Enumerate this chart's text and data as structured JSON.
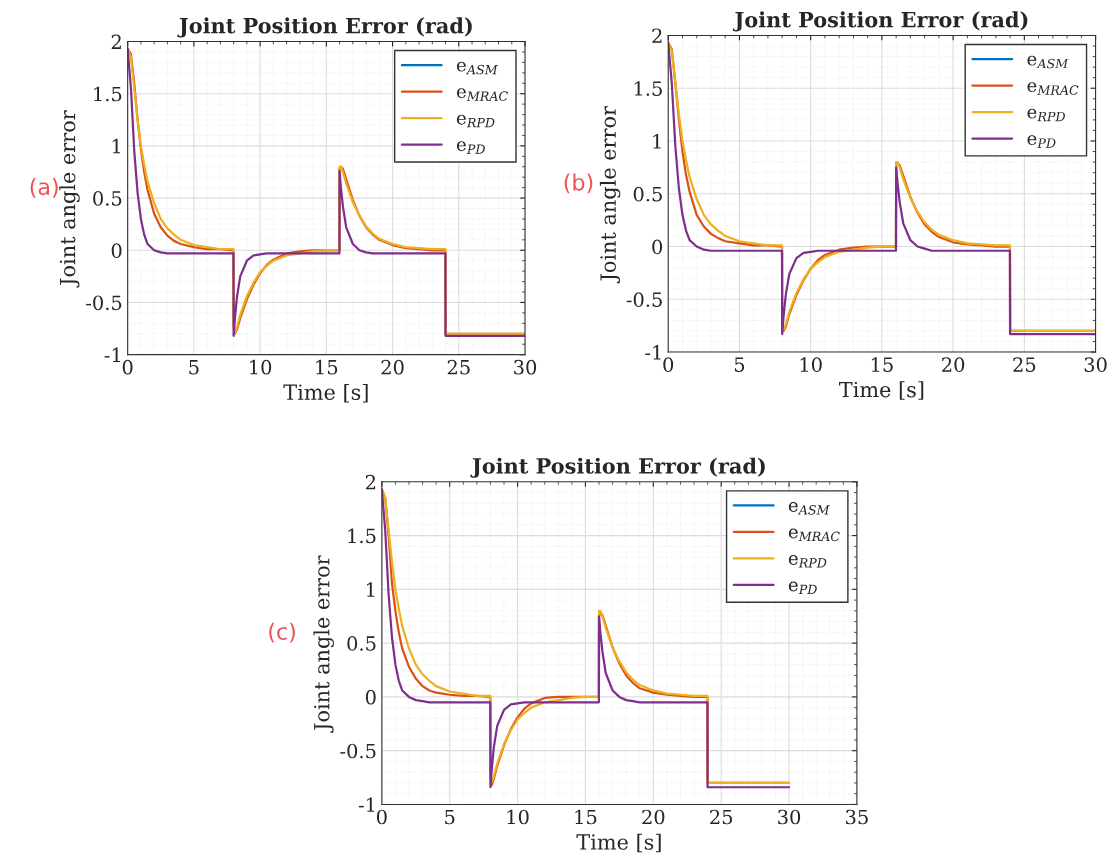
{
  "chart_data": [
    {
      "type": "line",
      "title": "Joint Position Error (rad)",
      "xlabel": "Time [s]",
      "ylabel": "Joint angle error",
      "annotations": [
        "(a)"
      ],
      "legend": "top right",
      "grid": true,
      "xlim": [
        0,
        30
      ],
      "xticks": [
        0,
        5,
        10,
        15,
        20,
        25,
        30
      ],
      "ylim": [
        -1,
        2
      ],
      "yticks": [
        -1,
        -0.5,
        0,
        0.5,
        1,
        1.5,
        2
      ],
      "x": [
        0,
        0.25,
        0.5,
        0.75,
        1,
        1.25,
        1.5,
        2,
        2.5,
        3,
        3.5,
        4,
        5,
        6,
        7,
        7.99,
        8,
        8.1,
        8.25,
        8.5,
        9,
        9.5,
        10,
        10.5,
        11,
        12,
        13,
        14,
        15,
        15.99,
        16,
        16.1,
        16.25,
        16.5,
        17,
        17.5,
        18,
        18.5,
        19,
        20,
        21,
        22,
        23,
        23.99,
        24,
        25,
        26,
        27,
        28,
        29,
        30
      ],
      "series": [
        {
          "name": "e$_{ASM}$",
          "color": "#0072bd",
          "values": [
            null,
            null,
            null,
            null,
            null,
            null,
            null,
            null,
            null,
            null,
            null,
            null,
            null,
            null,
            null,
            null,
            null,
            null,
            null,
            null,
            null,
            null,
            null,
            null,
            null,
            null,
            null,
            null,
            null,
            null,
            null,
            null,
            null,
            null,
            null,
            null,
            null,
            null,
            null,
            null,
            null,
            null,
            null,
            null,
            null,
            null,
            null,
            null,
            null,
            null,
            null
          ]
        },
        {
          "name": "e$_{MRAC}$",
          "color": "#d95319",
          "values": [
            1.93,
            1.88,
            1.6,
            1.25,
            0.97,
            0.75,
            0.58,
            0.35,
            0.22,
            0.14,
            0.09,
            0.06,
            0.03,
            0.01,
            0.01,
            0,
            -0.7,
            -0.8,
            -0.76,
            -0.65,
            -0.47,
            -0.33,
            -0.22,
            -0.14,
            -0.09,
            -0.03,
            -0.01,
            0,
            0,
            0,
            0.78,
            0.8,
            0.78,
            0.68,
            0.48,
            0.33,
            0.22,
            0.15,
            0.1,
            0.05,
            0.02,
            0.01,
            0,
            0,
            -0.8,
            -0.8,
            -0.8,
            -0.8,
            -0.8,
            -0.8,
            -0.8
          ]
        },
        {
          "name": "e$_{RPD}$",
          "color": "#edb120",
          "values": [
            1.93,
            1.85,
            1.55,
            1.25,
            1.0,
            0.82,
            0.66,
            0.45,
            0.3,
            0.21,
            0.15,
            0.1,
            0.05,
            0.03,
            0.01,
            0.01,
            -0.75,
            -0.79,
            -0.74,
            -0.62,
            -0.44,
            -0.31,
            -0.21,
            -0.15,
            -0.1,
            -0.05,
            -0.03,
            -0.01,
            0,
            0,
            0.8,
            0.8,
            0.75,
            0.64,
            0.46,
            0.33,
            0.23,
            0.16,
            0.11,
            0.06,
            0.03,
            0.02,
            0.01,
            0.01,
            -0.8,
            -0.8,
            -0.8,
            -0.8,
            -0.8,
            -0.8,
            -0.8
          ]
        },
        {
          "name": "e$_{PD}$",
          "color": "#7e2f8e",
          "values": [
            1.93,
            1.55,
            0.95,
            0.55,
            0.3,
            0.15,
            0.06,
            0,
            -0.02,
            -0.03,
            -0.03,
            -0.03,
            -0.03,
            -0.03,
            -0.03,
            -0.03,
            -0.82,
            -0.65,
            -0.45,
            -0.25,
            -0.1,
            -0.05,
            -0.04,
            -0.03,
            -0.03,
            -0.03,
            -0.03,
            -0.03,
            -0.03,
            -0.03,
            0.76,
            0.6,
            0.42,
            0.22,
            0.06,
            0,
            -0.02,
            -0.03,
            -0.03,
            -0.03,
            -0.03,
            -0.03,
            -0.03,
            -0.03,
            -0.82,
            -0.82,
            -0.82,
            -0.82,
            -0.82,
            -0.82,
            -0.82
          ]
        }
      ]
    },
    {
      "type": "line",
      "title": "Joint Position Error (rad)",
      "xlabel": "Time [s]",
      "ylabel": "Joint angle error",
      "annotations": [
        "(b)"
      ],
      "legend": "top right",
      "grid": true,
      "xlim": [
        0,
        30
      ],
      "xticks": [
        0,
        5,
        10,
        15,
        20,
        25,
        30
      ],
      "ylim": [
        -1,
        2
      ],
      "yticks": [
        -1,
        -0.5,
        0,
        0.5,
        1,
        1.5,
        2
      ],
      "x": [
        0,
        0.25,
        0.5,
        0.75,
        1,
        1.25,
        1.5,
        2,
        2.5,
        3,
        3.5,
        4,
        5,
        6,
        7,
        7.99,
        8,
        8.1,
        8.25,
        8.5,
        9,
        9.5,
        10,
        10.5,
        11,
        12,
        13,
        14,
        15,
        15.99,
        16,
        16.1,
        16.25,
        16.5,
        17,
        17.5,
        18,
        18.5,
        19,
        20,
        21,
        22,
        23,
        23.99,
        24,
        25,
        26,
        27,
        28,
        29,
        30
      ],
      "series": [
        {
          "name": "e$_{ASM}$",
          "color": "#0072bd",
          "values": [
            null,
            null,
            null,
            null,
            null,
            null,
            null,
            null,
            null,
            null,
            null,
            null,
            null,
            null,
            null,
            null,
            null,
            null,
            null,
            null,
            null,
            null,
            null,
            null,
            null,
            null,
            null,
            null,
            null,
            null,
            null,
            null,
            null,
            null,
            null,
            null,
            null,
            null,
            null,
            null,
            null,
            null,
            null,
            null,
            null,
            null,
            null,
            null,
            null,
            null,
            null
          ]
        },
        {
          "name": "e$_{MRAC}$",
          "color": "#d95319",
          "values": [
            1.93,
            1.87,
            1.55,
            1.2,
            0.9,
            0.68,
            0.52,
            0.3,
            0.19,
            0.12,
            0.08,
            0.05,
            0.03,
            0.01,
            0.01,
            0,
            -0.72,
            -0.8,
            -0.76,
            -0.64,
            -0.46,
            -0.32,
            -0.21,
            -0.13,
            -0.08,
            -0.03,
            -0.01,
            0,
            0,
            0,
            0.77,
            0.79,
            0.77,
            0.67,
            0.47,
            0.32,
            0.21,
            0.14,
            0.09,
            0.04,
            0.02,
            0.01,
            0,
            0,
            -0.8,
            -0.8,
            -0.8,
            -0.8,
            -0.8,
            -0.8,
            -0.8
          ]
        },
        {
          "name": "e$_{RPD}$",
          "color": "#edb120",
          "values": [
            1.93,
            1.85,
            1.55,
            1.25,
            1.0,
            0.82,
            0.66,
            0.45,
            0.3,
            0.21,
            0.15,
            0.1,
            0.05,
            0.03,
            0.01,
            0.01,
            -0.75,
            -0.79,
            -0.74,
            -0.62,
            -0.44,
            -0.31,
            -0.21,
            -0.15,
            -0.1,
            -0.05,
            -0.03,
            -0.01,
            0,
            0,
            0.8,
            0.8,
            0.75,
            0.64,
            0.46,
            0.33,
            0.23,
            0.16,
            0.11,
            0.06,
            0.03,
            0.02,
            0.01,
            0.01,
            -0.8,
            -0.8,
            -0.8,
            -0.8,
            -0.8,
            -0.8,
            -0.8
          ]
        },
        {
          "name": "e$_{PD}$",
          "color": "#7e2f8e",
          "values": [
            1.93,
            1.55,
            0.95,
            0.55,
            0.3,
            0.15,
            0.06,
            0,
            -0.03,
            -0.04,
            -0.04,
            -0.04,
            -0.04,
            -0.04,
            -0.04,
            -0.04,
            -0.83,
            -0.66,
            -0.46,
            -0.26,
            -0.11,
            -0.06,
            -0.05,
            -0.04,
            -0.04,
            -0.04,
            -0.04,
            -0.04,
            -0.04,
            -0.04,
            0.75,
            0.6,
            0.42,
            0.22,
            0.06,
            0,
            -0.02,
            -0.04,
            -0.04,
            -0.04,
            -0.04,
            -0.04,
            -0.04,
            -0.04,
            -0.83,
            -0.83,
            -0.83,
            -0.83,
            -0.83,
            -0.83,
            -0.83
          ]
        }
      ]
    },
    {
      "type": "line",
      "title": "Joint Position Error (rad)",
      "xlabel": "Time [s]",
      "ylabel": "Joint angle error",
      "annotations": [
        "(c)"
      ],
      "legend": "top right",
      "grid": true,
      "xlim": [
        0,
        35
      ],
      "xticks": [
        0,
        5,
        10,
        15,
        20,
        25,
        30,
        35
      ],
      "ylim": [
        -1,
        2
      ],
      "yticks": [
        -1,
        -0.5,
        0,
        0.5,
        1,
        1.5,
        2
      ],
      "x": [
        0,
        0.25,
        0.5,
        0.75,
        1,
        1.25,
        1.5,
        2,
        2.5,
        3,
        3.5,
        4,
        5,
        6,
        7,
        7.99,
        8,
        8.1,
        8.25,
        8.5,
        9,
        9.5,
        10,
        10.5,
        11,
        12,
        13,
        14,
        15,
        15.99,
        16,
        16.1,
        16.25,
        16.5,
        17,
        17.5,
        18,
        18.5,
        19,
        20,
        21,
        22,
        23,
        23.99,
        24,
        25,
        26,
        27,
        28,
        29,
        30
      ],
      "series": [
        {
          "name": "e$_{ASM}$",
          "color": "#0072bd",
          "values": [
            null,
            null,
            null,
            null,
            null,
            null,
            null,
            null,
            null,
            null,
            null,
            null,
            null,
            null,
            null,
            null,
            null,
            null,
            null,
            null,
            null,
            null,
            null,
            null,
            null,
            null,
            null,
            null,
            null,
            null,
            null,
            null,
            null,
            null,
            null,
            null,
            null,
            null,
            null,
            null,
            null,
            null,
            null,
            null,
            null,
            null,
            null,
            null,
            null,
            null,
            null
          ]
        },
        {
          "name": "e$_{MRAC}$",
          "color": "#d95319",
          "values": [
            1.93,
            1.85,
            1.5,
            1.05,
            0.8,
            0.6,
            0.45,
            0.28,
            0.17,
            0.1,
            0.06,
            0.04,
            0.02,
            0.01,
            0.01,
            0,
            -0.72,
            -0.82,
            -0.76,
            -0.64,
            -0.45,
            -0.3,
            -0.19,
            -0.11,
            -0.06,
            -0.01,
            0,
            0,
            0,
            0,
            0.75,
            0.78,
            0.76,
            0.66,
            0.46,
            0.31,
            0.2,
            0.13,
            0.08,
            0.04,
            0.02,
            0.01,
            0,
            0,
            -0.8,
            -0.8,
            -0.8,
            -0.8,
            -0.8,
            -0.8,
            -0.8
          ]
        },
        {
          "name": "e$_{RPD}$",
          "color": "#edb120",
          "values": [
            1.93,
            1.85,
            1.55,
            1.25,
            1.0,
            0.82,
            0.66,
            0.45,
            0.3,
            0.21,
            0.15,
            0.1,
            0.05,
            0.03,
            0.01,
            0.01,
            -0.75,
            -0.79,
            -0.74,
            -0.62,
            -0.44,
            -0.31,
            -0.21,
            -0.15,
            -0.1,
            -0.05,
            -0.03,
            -0.01,
            0,
            0,
            0.8,
            0.8,
            0.75,
            0.64,
            0.46,
            0.33,
            0.23,
            0.16,
            0.11,
            0.06,
            0.03,
            0.02,
            0.01,
            0.01,
            -0.8,
            -0.8,
            -0.8,
            -0.8,
            -0.8,
            -0.8,
            -0.8
          ]
        },
        {
          "name": "e$_{PD}$",
          "color": "#7e2f8e",
          "values": [
            1.93,
            1.55,
            0.95,
            0.55,
            0.3,
            0.15,
            0.06,
            0,
            -0.03,
            -0.04,
            -0.05,
            -0.05,
            -0.05,
            -0.05,
            -0.05,
            -0.05,
            -0.84,
            -0.67,
            -0.47,
            -0.27,
            -0.12,
            -0.07,
            -0.06,
            -0.05,
            -0.05,
            -0.05,
            -0.05,
            -0.05,
            -0.05,
            -0.05,
            0.75,
            0.6,
            0.42,
            0.22,
            0.06,
            0,
            -0.03,
            -0.04,
            -0.05,
            -0.05,
            -0.05,
            -0.05,
            -0.05,
            -0.05,
            -0.84,
            -0.84,
            -0.84,
            -0.84,
            -0.84,
            -0.84,
            -0.84
          ]
        }
      ]
    }
  ]
}
